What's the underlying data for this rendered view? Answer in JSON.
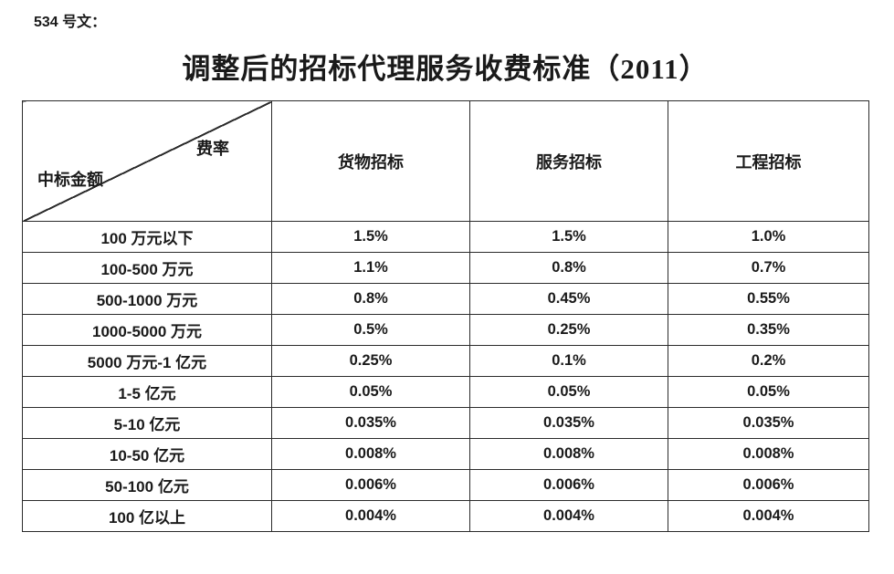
{
  "document": {
    "ref_label": "534 号文：",
    "title": "调整后的招标代理服务收费标准（2011）"
  },
  "table": {
    "corner": {
      "top_right_label": "费率",
      "bottom_left_label": "中标金额"
    },
    "column_headers": [
      "货物招标",
      "服务招标",
      "工程招标"
    ],
    "rows": [
      {
        "label": "100 万元以下",
        "values": [
          "1.5%",
          "1.5%",
          "1.0%"
        ]
      },
      {
        "label": "100-500 万元",
        "values": [
          "1.1%",
          "0.8%",
          "0.7%"
        ]
      },
      {
        "label": "500-1000 万元",
        "values": [
          "0.8%",
          "0.45%",
          "0.55%"
        ]
      },
      {
        "label": "1000-5000 万元",
        "values": [
          "0.5%",
          "0.25%",
          "0.35%"
        ]
      },
      {
        "label": "5000 万元-1 亿元",
        "values": [
          "0.25%",
          "0.1%",
          "0.2%"
        ]
      },
      {
        "label": "1-5 亿元",
        "values": [
          "0.05%",
          "0.05%",
          "0.05%"
        ]
      },
      {
        "label": "5-10 亿元",
        "values": [
          "0.035%",
          "0.035%",
          "0.035%"
        ]
      },
      {
        "label": "10-50 亿元",
        "values": [
          "0.008%",
          "0.008%",
          "0.008%"
        ]
      },
      {
        "label": "50-100 亿元",
        "values": [
          "0.006%",
          "0.006%",
          "0.006%"
        ]
      },
      {
        "label": "100 亿以上",
        "values": [
          "0.004%",
          "0.004%",
          "0.004%"
        ]
      }
    ],
    "colors": {
      "text": "#1a1a1a",
      "border": "#2b2b2b",
      "background": "#ffffff"
    }
  }
}
